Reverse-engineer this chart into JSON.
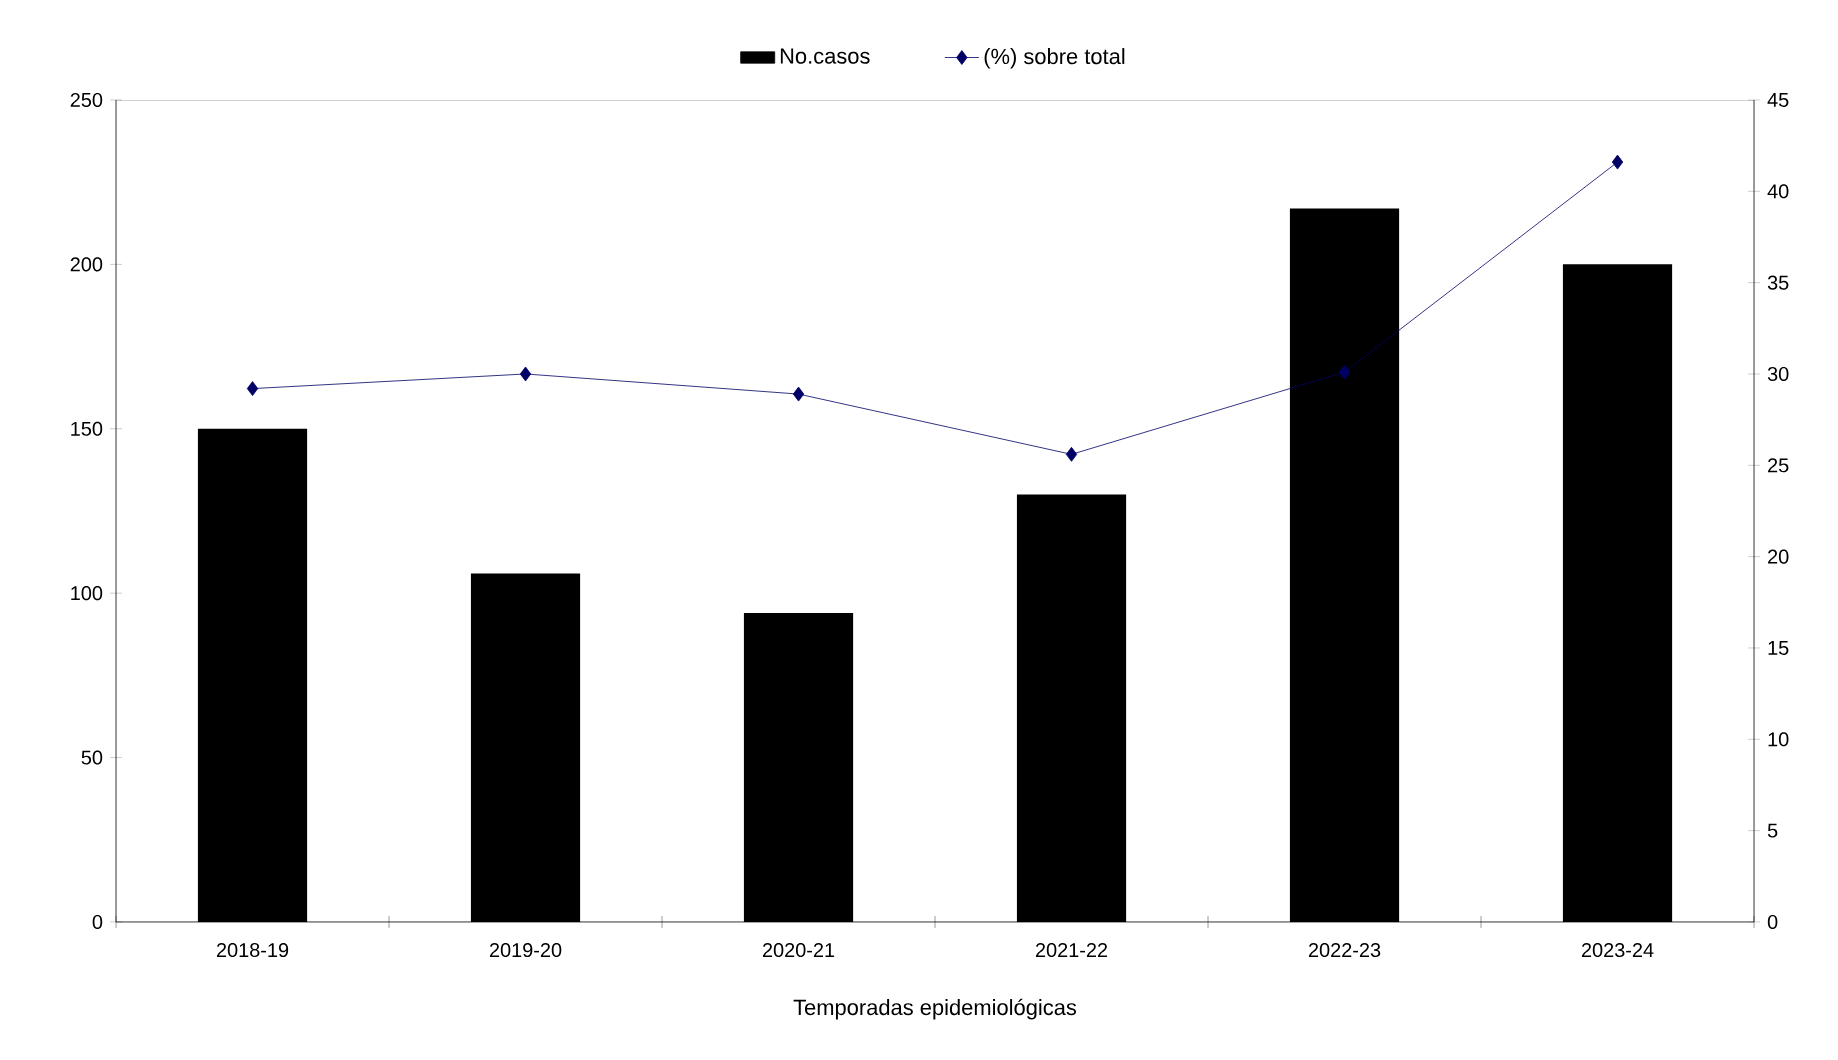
{
  "chart_data": {
    "type": "bar",
    "xlabel": "Temporadas epidemiológicas",
    "categories": [
      "2018-19",
      "2019-20",
      "2020-21",
      "2021-22",
      "2022-23",
      "2023-24"
    ],
    "series": [
      {
        "name": "No.casos",
        "color": "#000000",
        "values": [
          150,
          106,
          94,
          130,
          217,
          200
        ]
      },
      {
        "name": "(%) sobre total",
        "type": "line",
        "axis": "y2",
        "color": "#000066",
        "values": [
          29.2,
          30,
          28.9,
          25.6,
          30.1,
          41.6
        ]
      }
    ],
    "ylim": [
      0,
      250
    ],
    "yticks": [
      0,
      50,
      100,
      150,
      200,
      250
    ],
    "y2lim": [
      0,
      45
    ],
    "y2ticks": [
      0,
      5,
      10,
      15,
      20,
      25,
      30,
      35,
      40,
      45
    ],
    "marker": "diamond",
    "line_style": "solid",
    "legend": "top",
    "grid": false
  }
}
